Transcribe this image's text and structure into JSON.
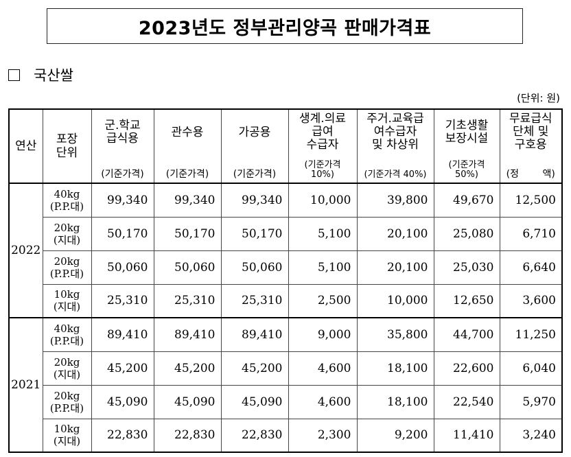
{
  "title": "2023년도 정부관리양곡 판매가격표",
  "section": {
    "label": "국산쌀"
  },
  "unit_note": "(단위: 원)",
  "headers": {
    "year": "연산",
    "package": [
      "포장",
      "단위"
    ],
    "military": {
      "main": [
        "군.학교",
        "급식용"
      ],
      "sub": "(기준가격)"
    },
    "government": {
      "main": [
        "관수용"
      ],
      "sub": "(기준가격)"
    },
    "processing": {
      "main": [
        "가공용"
      ],
      "sub": "(기준가격)"
    },
    "livelihood": {
      "main": [
        "생계.의료",
        "급여",
        "수급자"
      ],
      "sub": [
        "(기준가격",
        "10%)"
      ]
    },
    "housing": {
      "main": [
        "주거.교육급",
        "여수급자",
        "및 차상위"
      ],
      "sub": "(기준가격 40%)"
    },
    "basic_facility": {
      "main": [
        "기초생활",
        "보장시설"
      ],
      "sub": [
        "(기준가격",
        "50%)"
      ]
    },
    "free_meal": {
      "main": [
        "무료급식",
        "단체 및",
        "구호용"
      ],
      "sub": "(정 액)"
    }
  },
  "years": [
    {
      "year": "2022",
      "rows": [
        {
          "package": [
            "40kg",
            "(P.P.대)"
          ],
          "values": [
            "99,340",
            "99,340",
            "99,340",
            "10,000",
            "39,800",
            "49,670",
            "12,500"
          ]
        },
        {
          "package": [
            "20kg",
            "(지대)"
          ],
          "values": [
            "50,170",
            "50,170",
            "50,170",
            "5,100",
            "20,100",
            "25,080",
            "6,710"
          ]
        },
        {
          "package": [
            "20kg",
            "(P.P.대)"
          ],
          "values": [
            "50,060",
            "50,060",
            "50,060",
            "5,100",
            "20,100",
            "25,030",
            "6,640"
          ]
        },
        {
          "package": [
            "10kg",
            "(지대)"
          ],
          "values": [
            "25,310",
            "25,310",
            "25,310",
            "2,500",
            "10,000",
            "12,650",
            "3,600"
          ]
        }
      ]
    },
    {
      "year": "2021",
      "rows": [
        {
          "package": [
            "40kg",
            "(P.P.대)"
          ],
          "values": [
            "89,410",
            "89,410",
            "89,410",
            "9,000",
            "35,800",
            "44,700",
            "11,250"
          ]
        },
        {
          "package": [
            "20kg",
            "(지대)"
          ],
          "values": [
            "45,200",
            "45,200",
            "45,200",
            "4,600",
            "18,100",
            "22,600",
            "6,040"
          ]
        },
        {
          "package": [
            "20kg",
            "(P.P.대)"
          ],
          "values": [
            "45,090",
            "45,090",
            "45,090",
            "4,600",
            "18,100",
            "22,540",
            "5,970"
          ]
        },
        {
          "package": [
            "10kg",
            "(지대)"
          ],
          "values": [
            "22,830",
            "22,830",
            "22,830",
            "2,300",
            "9,200",
            "11,410",
            "3,240"
          ]
        }
      ]
    }
  ]
}
